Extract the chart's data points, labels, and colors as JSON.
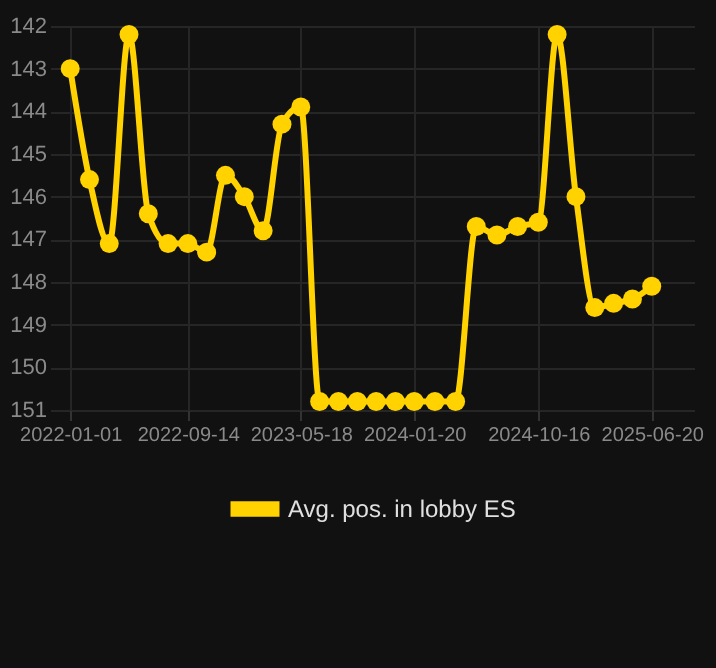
{
  "chart_data": {
    "type": "line",
    "x": [
      "2022-01-01",
      "2022-02-12",
      "2022-03-27",
      "2022-05-09",
      "2022-06-20",
      "2022-08-02",
      "2022-09-14",
      "2022-10-25",
      "2022-12-05",
      "2023-01-15",
      "2023-02-25",
      "2023-04-07",
      "2023-05-18",
      "2023-06-28",
      "2023-08-08",
      "2023-09-18",
      "2023-10-29",
      "2023-12-10",
      "2024-01-20",
      "2024-03-05",
      "2024-04-19",
      "2024-06-03",
      "2024-07-18",
      "2024-09-01",
      "2024-10-16",
      "2024-11-26",
      "2025-01-06",
      "2025-02-16",
      "2025-03-29",
      "2025-05-09",
      "2025-06-20"
    ],
    "series": [
      {
        "name": "Avg. pos. in lobby ES",
        "color": "#ffd200",
        "values": [
          143,
          145.6,
          147.1,
          142.2,
          146.4,
          147.1,
          147.1,
          147.3,
          145.5,
          146,
          146.8,
          144.3,
          143.9,
          150.8,
          150.8,
          150.8,
          150.8,
          150.8,
          150.8,
          150.8,
          150.8,
          146.7,
          146.9,
          146.7,
          146.6,
          142.2,
          146,
          148.6,
          148.5,
          148.4,
          148.1
        ]
      }
    ],
    "ylim": [
      151,
      142
    ],
    "yticks": [
      142,
      143,
      144,
      145,
      146,
      147,
      148,
      149,
      150,
      151
    ],
    "xlim": [
      "2021-11-18",
      "2025-09-20"
    ],
    "xticks": [
      "2022-01-01",
      "2022-09-14",
      "2023-05-18",
      "2024-01-20",
      "2024-10-16",
      "2025-06-20"
    ],
    "grid": true,
    "legend": "bottom",
    "marker": "circle",
    "line_style": "solid"
  }
}
